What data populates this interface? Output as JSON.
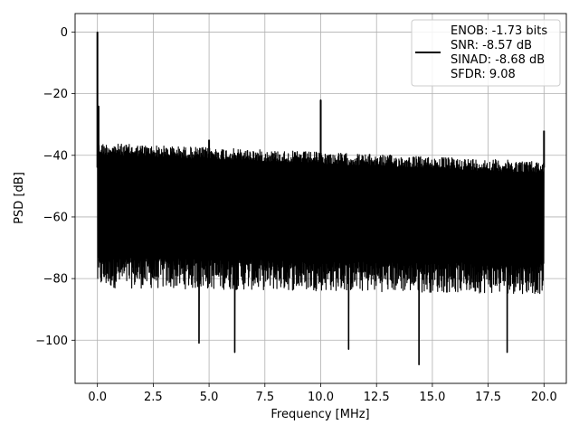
{
  "chart_data": {
    "type": "line",
    "title": "",
    "xlabel": "Frequency [MHz]",
    "ylabel": "PSD [dB]",
    "xlim": [
      -1.0,
      21.0
    ],
    "ylim": [
      -114,
      6
    ],
    "xticks": [
      0.0,
      2.5,
      5.0,
      7.5,
      10.0,
      12.5,
      15.0,
      17.5,
      20.0
    ],
    "xtick_labels": [
      "0.0",
      "2.5",
      "5.0",
      "7.5",
      "10.0",
      "12.5",
      "15.0",
      "17.5",
      "20.0"
    ],
    "yticks": [
      0,
      -20,
      -40,
      -60,
      -80,
      -100
    ],
    "ytick_labels": [
      "0",
      "−20",
      "−40",
      "−60",
      "−80",
      "−100"
    ],
    "grid": true,
    "legend_position": "top-right",
    "legend_lines": [
      "ENOB: -1.73 bits",
      "SNR: -8.57 dB",
      "SINAD: -8.68 dB",
      "SFDR: 9.08"
    ],
    "series": [
      {
        "color": "#000000",
        "x_range": [
          0.0,
          20.0
        ],
        "noise_floor_top_db": [
          -36,
          -42
        ],
        "noise_floor_typical_bottom_db": [
          -78,
          -80
        ],
        "peaks": [
          {
            "x": 0.0,
            "y": 0
          },
          {
            "x": 0.05,
            "y": -24
          },
          {
            "x": 5.0,
            "y": -35
          },
          {
            "x": 10.0,
            "y": -22
          },
          {
            "x": 20.0,
            "y": -32
          }
        ],
        "deep_notches": [
          {
            "x": 4.55,
            "y": -101
          },
          {
            "x": 6.15,
            "y": -104
          },
          {
            "x": 11.25,
            "y": -103
          },
          {
            "x": 14.4,
            "y": -108
          },
          {
            "x": 18.35,
            "y": -104
          }
        ]
      }
    ]
  }
}
